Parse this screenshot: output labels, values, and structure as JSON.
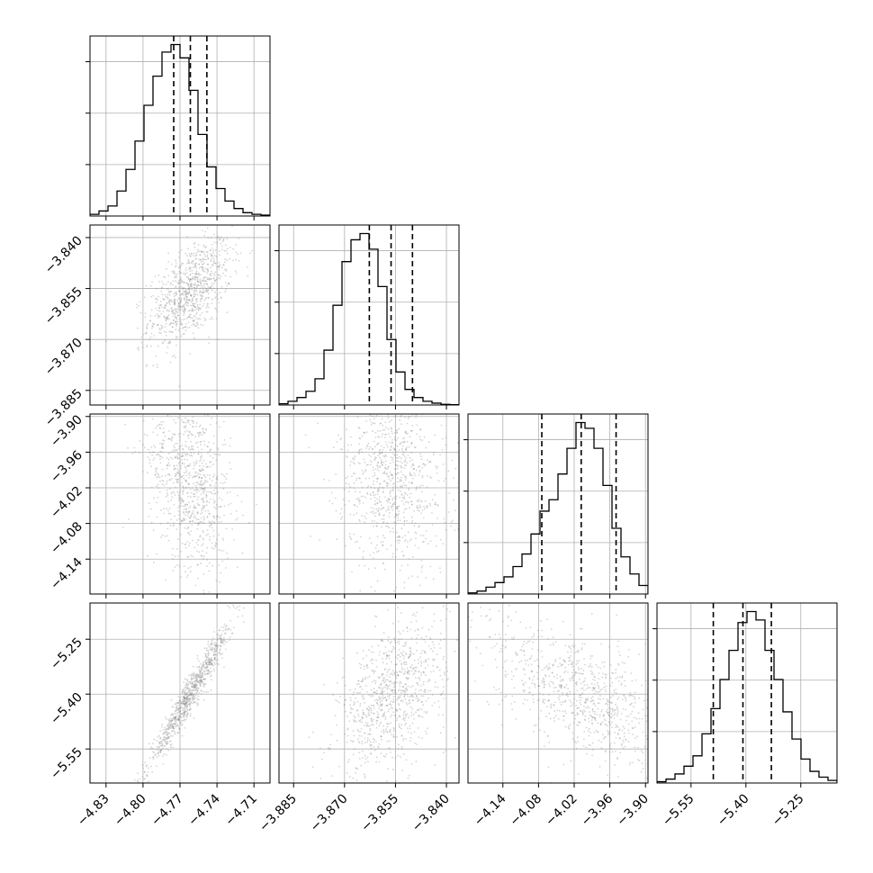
{
  "chart_data": {
    "type": "corner",
    "n_params": 4,
    "grid": true,
    "params": [
      {
        "range": [
          -4.843,
          -4.697
        ],
        "ticks": [
          "−4.83",
          "−4.80",
          "−4.77",
          "−4.74",
          "−4.71"
        ],
        "tick_values": [
          -4.83,
          -4.8,
          -4.77,
          -4.74,
          -4.71
        ],
        "quantiles": [
          -4.7751,
          -4.7616,
          -4.7482
        ],
        "mode": -4.762
      },
      {
        "range": [
          -3.8893,
          -3.8363
        ],
        "ticks": [
          "−3.885",
          "−3.870",
          "−3.855",
          "−3.840"
        ],
        "tick_values": [
          -3.885,
          -3.87,
          -3.855,
          -3.84
        ],
        "quantiles": [
          -3.8627,
          -3.8563,
          -3.85
        ],
        "mode": -3.856
      },
      {
        "range": [
          -4.1987,
          -3.8958
        ],
        "ticks": [
          "−4.14",
          "−4.08",
          "−4.02",
          "−3.96",
          "−3.90"
        ],
        "tick_values": [
          -4.14,
          -4.08,
          -4.02,
          -3.96,
          -3.9
        ],
        "quantiles": [
          -4.0745,
          -4.0082,
          -3.9495
        ],
        "mode": -4.005
      },
      {
        "range": [
          -5.643,
          -5.151
        ],
        "ticks": [
          "−5.55",
          "−5.40",
          "−5.25"
        ],
        "tick_values": [
          -5.55,
          -5.4,
          -5.25
        ],
        "quantiles": [
          -5.4891,
          -5.4081,
          -5.3304
        ],
        "mode": -5.403
      }
    ],
    "histograms": [
      [
        20,
        60,
        120,
        300,
        560,
        900,
        1330,
        1680,
        1970,
        2060,
        1900,
        1510,
        980,
        590,
        330,
        180,
        90,
        40,
        20,
        10
      ],
      [
        20,
        60,
        120,
        220,
        420,
        880,
        1600,
        2300,
        2650,
        2750,
        2500,
        1900,
        1050,
        530,
        250,
        120,
        60,
        30,
        10,
        5
      ],
      [
        20,
        50,
        120,
        200,
        300,
        480,
        700,
        1050,
        1450,
        1650,
        2100,
        2550,
        3000,
        2900,
        2550,
        1900,
        1150,
        650,
        350,
        150
      ],
      [
        20,
        60,
        140,
        260,
        420,
        760,
        1150,
        1600,
        2050,
        2480,
        2650,
        2520,
        2050,
        1600,
        1100,
        680,
        370,
        180,
        90,
        40
      ]
    ],
    "correlations": {
      "1-0": 0.55,
      "2-0": -0.3,
      "2-1": -0.15,
      "3-0": 0.97,
      "3-1": 0.45,
      "3-2": -0.6
    }
  }
}
